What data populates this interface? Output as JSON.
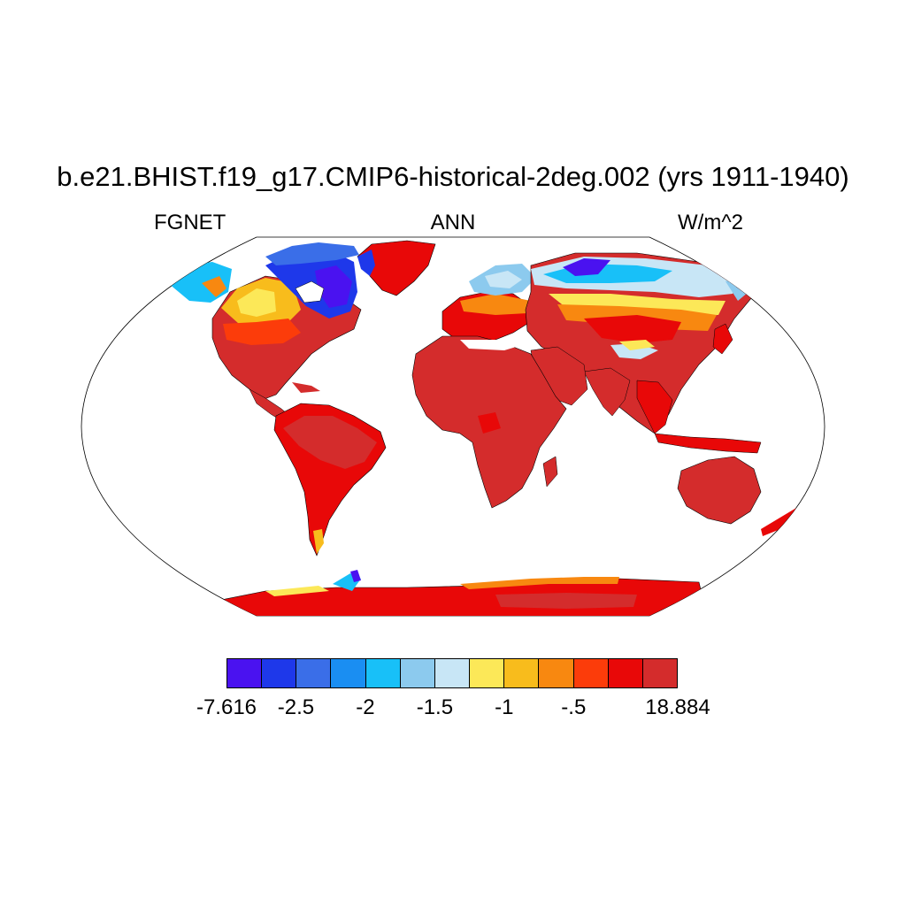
{
  "title": "b.e21.BHIST.f19_g17.CMIP6-historical-2deg.002 (yrs 1911-1940)",
  "subtitle_left": "FGNET",
  "subtitle_center": "ANN",
  "subtitle_right": "W/m^2",
  "projection": "robinson",
  "colorbar": {
    "colors": [
      "#4a12f0",
      "#1e38ea",
      "#3a6ee8",
      "#1a8ef2",
      "#18c0f8",
      "#8ccaee",
      "#c8e6f6",
      "#fce858",
      "#f8bc1c",
      "#f88810",
      "#fc3c0a",
      "#e80808",
      "#d42c2c"
    ],
    "labels": [
      "-7.616",
      "-2.5",
      "-2",
      "-1.5",
      "-1",
      "-.5",
      "18.884"
    ]
  },
  "colors": {
    "ocean": "#ffffff",
    "land_dominant": "#d42c2c",
    "land_secondary": "#e80808",
    "outline": "#000000"
  }
}
